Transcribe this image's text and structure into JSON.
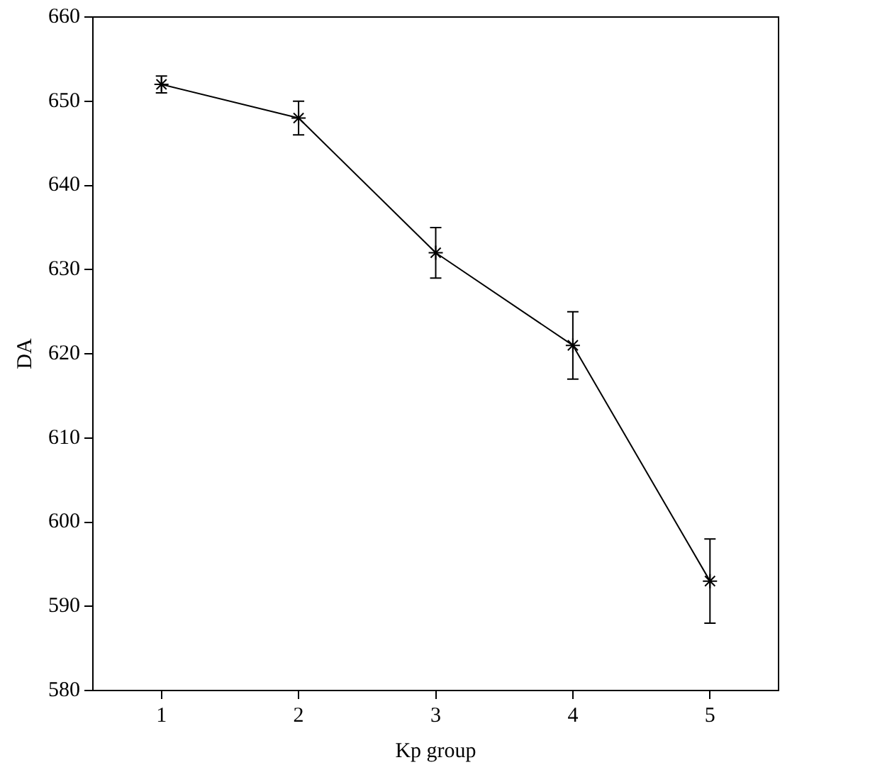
{
  "chart_data": {
    "type": "line",
    "xlabel": "Kp group",
    "ylabel": "DA",
    "x": [
      1,
      2,
      3,
      4,
      5
    ],
    "series": [
      {
        "color": "#000000",
        "values": [
          652,
          648,
          632,
          621,
          593
        ],
        "errors": [
          1,
          2,
          3,
          4,
          5
        ]
      }
    ],
    "xlim": [
      0.5,
      5.5
    ],
    "xticks": [
      1,
      2,
      3,
      4,
      5
    ],
    "ylim": [
      580,
      660
    ],
    "yticks": [
      580,
      590,
      600,
      610,
      620,
      630,
      640,
      650,
      660
    ],
    "grid": false,
    "legend": false,
    "marker": "cross",
    "line_style": "solid"
  }
}
